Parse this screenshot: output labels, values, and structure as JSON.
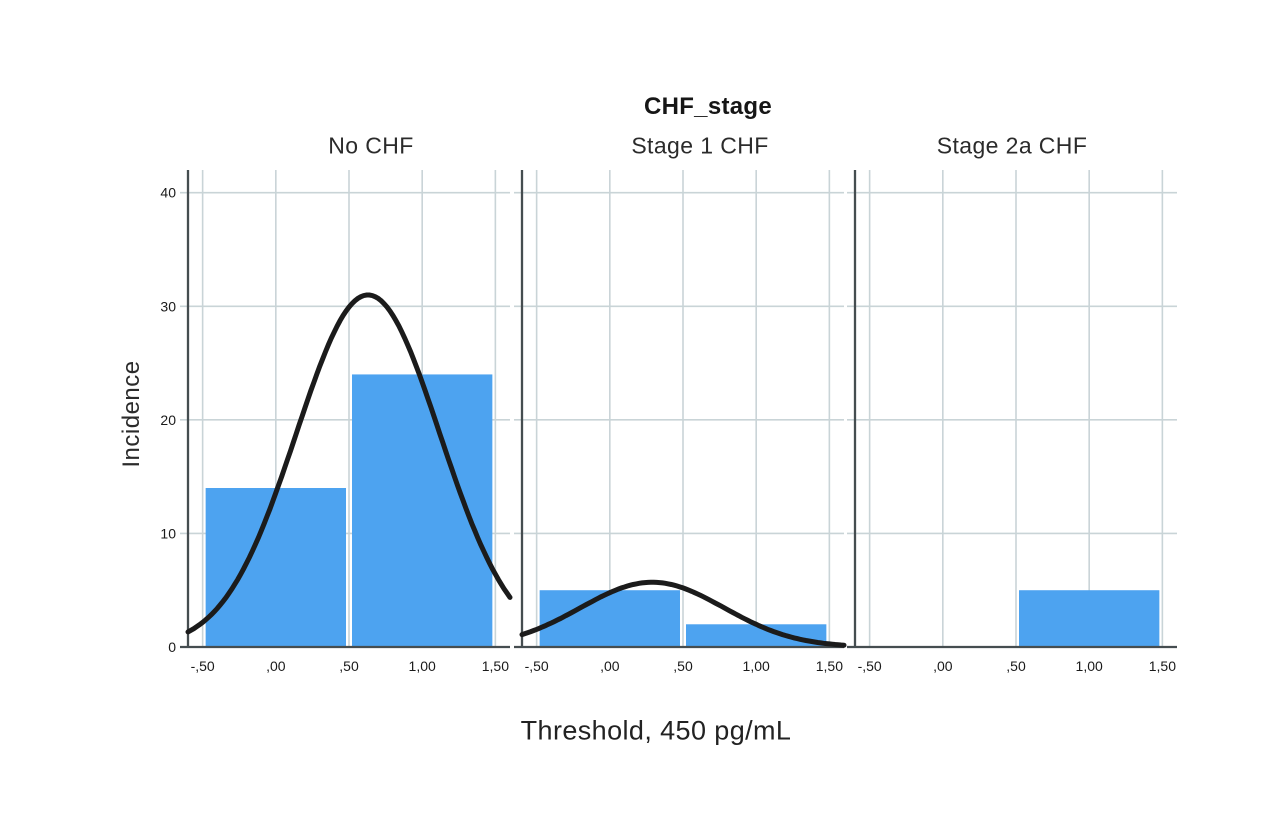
{
  "chart_data": {
    "type": "bar",
    "subtype": "faceted-histogram-with-normal-curves",
    "title": "CHF_stage",
    "xlabel": "Threshold, 450 pg/mL",
    "ylabel": "Incidence",
    "xlim": [
      -0.6,
      1.6
    ],
    "ylim": [
      0,
      42
    ],
    "grid": true,
    "x_ticks": [
      -0.5,
      0.0,
      0.5,
      1.0,
      1.5
    ],
    "x_tick_labels": [
      "-,50",
      ",00",
      ",50",
      "1,00",
      "1,50"
    ],
    "y_ticks": [
      0,
      10,
      20,
      30,
      40
    ],
    "y_tick_labels": [
      "0",
      "10",
      "20",
      "30",
      "40"
    ],
    "panels": [
      {
        "label": "No CHF",
        "bars": [
          {
            "x0": -0.5,
            "x1": 0.5,
            "count": 14
          },
          {
            "x0": 0.5,
            "x1": 1.5,
            "count": 24
          }
        ],
        "normal_curve": {
          "n": 38,
          "mean": 0.63,
          "sd": 0.49,
          "peak": 31
        }
      },
      {
        "label": "Stage 1 CHF",
        "bars": [
          {
            "x0": -0.5,
            "x1": 0.5,
            "count": 5
          },
          {
            "x0": 0.5,
            "x1": 1.5,
            "count": 2
          }
        ],
        "normal_curve": {
          "n": 7,
          "mean": 0.29,
          "sd": 0.49,
          "peak": 5.7
        }
      },
      {
        "label": "Stage 2a CHF",
        "bars": [
          {
            "x0": 0.5,
            "x1": 1.5,
            "count": 5
          }
        ],
        "normal_curve": null
      }
    ],
    "colors": {
      "bar_fill": "#4da3f0",
      "gridline": "#c9d4d7",
      "axis": "#454d50",
      "curve": "#1b1b1b",
      "tick_text": "#1a1a1a"
    }
  }
}
